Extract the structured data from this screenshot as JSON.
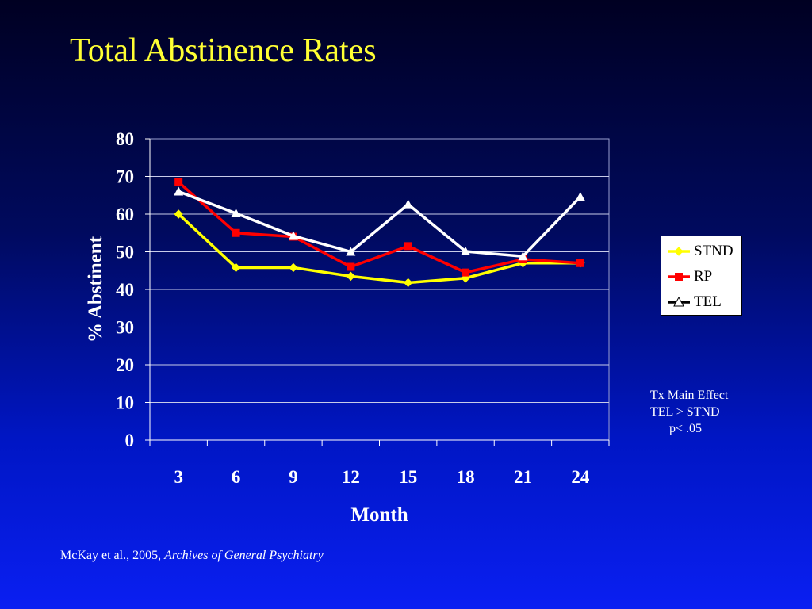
{
  "page": {
    "title": "Total Abstinence Rates",
    "annotation": {
      "line1": "Tx Main Effect",
      "line2": "TEL > STND",
      "line3": "p< .05"
    },
    "citation": {
      "authors": "McKay et al., 2005, ",
      "journal": "Archives of General Psychiatry"
    }
  },
  "chart_data": {
    "type": "line",
    "title": "",
    "xlabel": "Month",
    "ylabel": "% Abstinent",
    "categories": [
      "3",
      "6",
      "9",
      "12",
      "15",
      "18",
      "21",
      "24"
    ],
    "ylim": [
      0,
      80
    ],
    "yticks": [
      "0",
      "10",
      "20",
      "30",
      "40",
      "50",
      "60",
      "70",
      "80"
    ],
    "grid": true,
    "legend_position": "right",
    "series": [
      {
        "name": "STND",
        "color": "#ffff00",
        "marker": "diamond",
        "values": [
          60,
          45.8,
          45.8,
          43.5,
          41.8,
          43,
          47,
          47
        ]
      },
      {
        "name": "RP",
        "color": "#ff0000",
        "marker": "square",
        "values": [
          68.5,
          55,
          54,
          46,
          51.5,
          44.5,
          48,
          47
        ]
      },
      {
        "name": "TEL",
        "color": "#ffffff",
        "marker": "triangle",
        "values": [
          66,
          60.2,
          54.2,
          50,
          62.6,
          50.1,
          48.8,
          64.6
        ]
      }
    ]
  }
}
